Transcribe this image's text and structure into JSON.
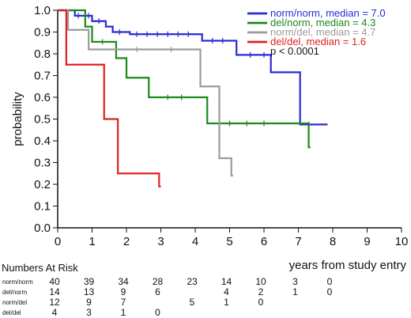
{
  "chart_data": {
    "type": "line",
    "title": "",
    "xlabel": "years from study entry",
    "ylabel": "probability",
    "xlim": [
      0,
      10
    ],
    "ylim": [
      0,
      1.0
    ],
    "x_ticks": [
      0,
      1,
      2,
      3,
      4,
      5,
      6,
      7,
      8,
      9,
      10
    ],
    "y_ticks": [
      0.0,
      0.1,
      0.2,
      0.3,
      0.4,
      0.5,
      0.6,
      0.7,
      0.8,
      0.9,
      1.0
    ],
    "x_tick_labels": [
      "0",
      "1",
      "2",
      "3",
      "4",
      "5",
      "6",
      "7",
      "8",
      "9",
      "10"
    ],
    "y_tick_labels": [
      "0.0",
      "0.1",
      "0.2",
      "0.3",
      "0.4",
      "0.5",
      "0.6",
      "0.7",
      "0.8",
      "0.9",
      "1.0"
    ],
    "grid": false,
    "legend_position": "top-right",
    "annotation": "p < 0.0001",
    "series": [
      {
        "name": "norm/norm, median = 7.0",
        "color": "#2a2ad8",
        "steps": [
          [
            0,
            1.0
          ],
          [
            0.5,
            0.975
          ],
          [
            1.0,
            0.95
          ],
          [
            1.4,
            0.925
          ],
          [
            1.6,
            0.9
          ],
          [
            2.1,
            0.89
          ],
          [
            4.2,
            0.86
          ],
          [
            5.2,
            0.795
          ],
          [
            6.2,
            0.715
          ],
          [
            7.05,
            0.475
          ],
          [
            7.85,
            0.475
          ]
        ],
        "censor_x": [
          0.6,
          0.9,
          1.2,
          1.8,
          2.3,
          2.6,
          2.9,
          3.2,
          3.5,
          3.8,
          4.5,
          4.8,
          5.6,
          6.0,
          7.3
        ]
      },
      {
        "name": "del/norm, median = 4.3",
        "color": "#1a8a1a",
        "steps": [
          [
            0,
            1.0
          ],
          [
            0.8,
            0.925
          ],
          [
            1.0,
            0.855
          ],
          [
            1.7,
            0.78
          ],
          [
            2.0,
            0.69
          ],
          [
            2.65,
            0.6
          ],
          [
            4.35,
            0.48
          ],
          [
            7.3,
            0.37
          ],
          [
            7.35,
            0.37
          ]
        ],
        "censor_x": [
          1.3,
          3.2,
          3.6,
          5.0,
          5.5,
          6.0
        ]
      },
      {
        "name": "norm/del, median = 4.7",
        "color": "#9a9a9a",
        "steps": [
          [
            0,
            1.0
          ],
          [
            0.3,
            0.91
          ],
          [
            0.9,
            0.82
          ],
          [
            4.15,
            0.65
          ],
          [
            4.7,
            0.32
          ],
          [
            5.05,
            0.24
          ],
          [
            5.1,
            0.24
          ]
        ],
        "censor_x": [
          2.3,
          3.3
        ]
      },
      {
        "name": "del/del, median = 1.6",
        "color": "#e02020",
        "steps": [
          [
            0,
            1.0
          ],
          [
            0.25,
            0.75
          ],
          [
            1.35,
            0.5
          ],
          [
            1.75,
            0.25
          ],
          [
            2.95,
            0.19
          ],
          [
            3.0,
            0.19
          ]
        ],
        "censor_x": []
      }
    ]
  },
  "risk_table": {
    "title": "Numbers At Risk",
    "rows": [
      {
        "label": "norm/norm",
        "values": [
          "40",
          "39",
          "34",
          "28",
          "23",
          "14",
          "10",
          "3",
          "0"
        ],
        "xs": [
          0,
          1,
          2,
          3,
          4,
          5,
          6,
          7,
          8
        ]
      },
      {
        "label": "del/norm",
        "values": [
          "14",
          "13",
          "9",
          "6",
          "4",
          "2",
          "1",
          "0"
        ],
        "xs": [
          0,
          1,
          2,
          3,
          5,
          6,
          7,
          8
        ]
      },
      {
        "label": "norm/del",
        "values": [
          "12",
          "9",
          "7",
          "5",
          "1",
          "0"
        ],
        "xs": [
          0,
          1,
          2,
          4,
          5,
          6
        ]
      },
      {
        "label": "del/del",
        "values": [
          "4",
          "3",
          "1",
          "0"
        ],
        "xs": [
          0,
          1,
          2,
          3
        ]
      }
    ]
  }
}
